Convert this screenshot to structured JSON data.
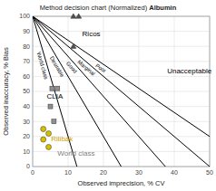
{
  "chart_data": {
    "type": "scatter",
    "title": "Method decision chart (Normalized) ",
    "title_bold": "Albumin",
    "x_label": "Observed imprecision, % CV",
    "y_label": "Observed inaccuracy, % Bias",
    "xlim": [
      0,
      50
    ],
    "ylim": [
      0,
      100
    ],
    "xticks": [
      0,
      10,
      20,
      30,
      40,
      50
    ],
    "yticks": [
      0,
      10,
      20,
      30,
      40,
      50,
      60,
      70,
      80,
      90,
      100
    ],
    "grid": true,
    "series": [
      {
        "name": "World class",
        "type": "line",
        "color": "black",
        "x": [
          0,
          12.5
        ],
        "y": [
          100,
          0
        ]
      },
      {
        "name": "Desirable",
        "type": "line",
        "color": "black",
        "x": [
          0,
          25
        ],
        "y": [
          100,
          0
        ]
      },
      {
        "name": "Good",
        "type": "line",
        "color": "black",
        "x": [
          0,
          37.49531308586427
        ],
        "y": [
          100,
          0
        ]
      },
      {
        "name": "Marginal",
        "type": "line",
        "color": "black",
        "x": [
          0,
          50
        ],
        "y": [
          100,
          0
        ]
      },
      {
        "name": "Poor",
        "type": "line",
        "color": "black",
        "x": [
          0,
          50
        ],
        "y": [
          100,
          20
        ]
      },
      {
        "type": "scatter",
        "marker": "square",
        "color": "#909090",
        "x": [
          5.5,
          7.0,
          5.0,
          6.0
        ],
        "y": [
          52,
          52,
          40,
          30
        ]
      },
      {
        "type": "scatter",
        "marker": "circle",
        "color": "#d4c000",
        "x": [
          3.0,
          4.5,
          3.0,
          4.5
        ],
        "y": [
          25,
          22,
          18,
          13
        ]
      },
      {
        "type": "scatter",
        "marker": "triangle",
        "color": "#505050",
        "x": [
          11.5,
          13.0,
          11.5
        ],
        "y": [
          100,
          100,
          80
        ]
      }
    ],
    "annotations": [
      {
        "text": "Unacceptable",
        "x": 38,
        "y": 62,
        "color": "black"
      },
      {
        "text": "Ricos",
        "x": 14,
        "y": 87,
        "color": "black"
      },
      {
        "text": "CLIA",
        "x": 4.0,
        "y": 45,
        "color": "black"
      },
      {
        "text": "Rilibak",
        "x": 5.2,
        "y": 17,
        "color": "#c8a000"
      },
      {
        "text": "World class",
        "x": 7,
        "y": 7,
        "color": "gray"
      }
    ]
  }
}
